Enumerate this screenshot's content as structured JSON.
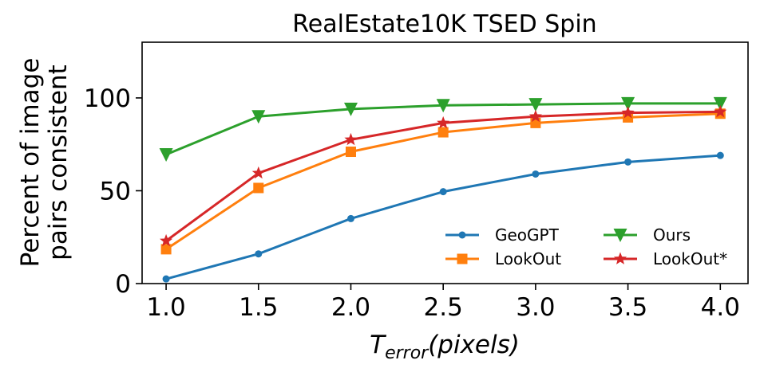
{
  "chart_data": {
    "type": "line",
    "title": "RealEstate10K TSED Spin",
    "xlabel_main": "T",
    "xlabel_sub": "error",
    "xlabel_unit": "(pixels)",
    "ylabel_lines": [
      "Percent of image",
      "pairs consistent"
    ],
    "x": [
      1.0,
      1.5,
      2.0,
      2.5,
      3.0,
      3.5,
      4.0
    ],
    "x_tick_labels": [
      "1.0",
      "1.5",
      "2.0",
      "2.5",
      "3.0",
      "3.5",
      "4.0"
    ],
    "y_ticks": [
      0,
      50,
      100
    ],
    "y_tick_labels": [
      "0",
      "50",
      "100"
    ],
    "xlim": [
      0.87,
      4.15
    ],
    "ylim": [
      0,
      130
    ],
    "grid": false,
    "legend_placement": "lower-right",
    "series": [
      {
        "name": "GeoGPT",
        "color": "#1f77b4",
        "marker": "circle",
        "values": [
          2.5,
          16,
          35,
          49.5,
          59,
          65.5,
          69
        ]
      },
      {
        "name": "LookOut",
        "color": "#ff7f0e",
        "marker": "square",
        "values": [
          18.5,
          51.5,
          71,
          81.5,
          86.5,
          89.5,
          91.5
        ]
      },
      {
        "name": "Ours",
        "color": "#2ca02c",
        "marker": "triangle-down",
        "values": [
          69.5,
          90,
          94,
          96,
          96.5,
          97,
          97
        ]
      },
      {
        "name": "LookOut*",
        "color": "#d62728",
        "marker": "star",
        "values": [
          23,
          59.5,
          77.5,
          86.5,
          90,
          92,
          92.5
        ]
      }
    ]
  }
}
